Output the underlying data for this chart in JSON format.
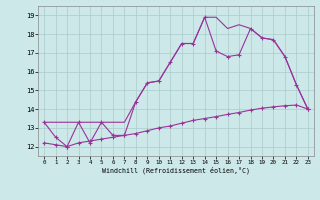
{
  "xlabel": "Windchill (Refroidissement éolien,°C)",
  "bg_color": "#cce8e8",
  "grid_color": "#aacccc",
  "line_color": "#993399",
  "x_ticks": [
    0,
    1,
    2,
    3,
    4,
    5,
    6,
    7,
    8,
    9,
    10,
    11,
    12,
    13,
    14,
    15,
    16,
    17,
    18,
    19,
    20,
    21,
    22,
    23
  ],
  "y_ticks": [
    12,
    13,
    14,
    15,
    16,
    17,
    18,
    19
  ],
  "ylim": [
    11.5,
    19.5
  ],
  "xlim": [
    -0.5,
    23.5
  ],
  "series1": [
    13.3,
    12.5,
    12.0,
    13.3,
    12.2,
    13.3,
    12.6,
    12.6,
    14.4,
    15.4,
    15.5,
    16.5,
    17.5,
    17.5,
    18.9,
    17.1,
    16.8,
    16.9,
    18.3,
    17.8,
    17.7,
    16.8,
    15.3,
    14.0
  ],
  "series2": [
    13.3,
    13.3,
    13.3,
    13.3,
    13.3,
    13.3,
    13.3,
    13.3,
    14.4,
    15.4,
    15.5,
    16.5,
    17.5,
    17.5,
    18.9,
    18.9,
    18.3,
    18.5,
    18.3,
    17.8,
    17.7,
    16.8,
    15.3,
    14.0
  ],
  "series3": [
    12.2,
    12.1,
    12.0,
    12.2,
    12.3,
    12.4,
    12.5,
    12.6,
    12.7,
    12.85,
    13.0,
    13.1,
    13.25,
    13.4,
    13.5,
    13.6,
    13.72,
    13.82,
    13.95,
    14.05,
    14.12,
    14.18,
    14.22,
    14.0
  ]
}
